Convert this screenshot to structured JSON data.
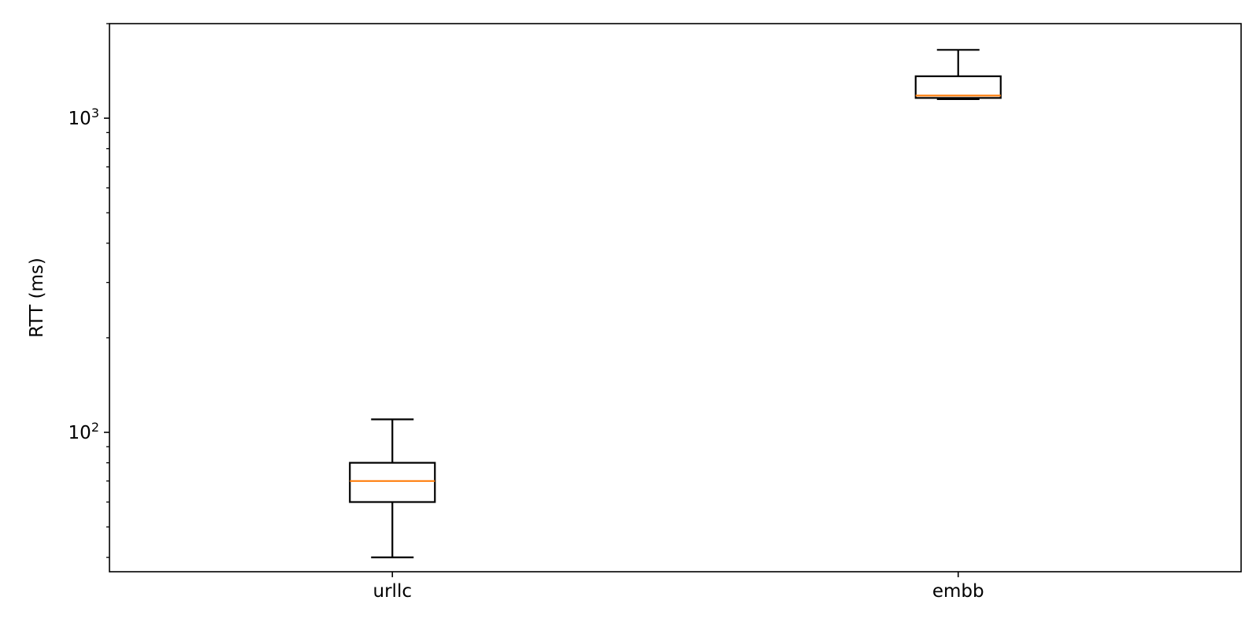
{
  "chart_data": {
    "type": "box",
    "title": "",
    "xlabel": "",
    "ylabel": "RTT (ms)",
    "yscale": "log",
    "ylim": [
      36,
      2000
    ],
    "categories": [
      "urllc",
      "embb"
    ],
    "y_major_ticks": [
      {
        "value": 100,
        "base": "10",
        "exp": "2"
      },
      {
        "value": 1000,
        "base": "10",
        "exp": "3"
      }
    ],
    "y_minor_ticks": [
      40,
      50,
      60,
      70,
      80,
      90,
      200,
      300,
      400,
      500,
      600,
      700,
      800,
      900,
      2000
    ],
    "grid": false,
    "legend": "none",
    "boxes": [
      {
        "name": "urllc",
        "whisker_low": 40,
        "q1": 60,
        "median": 70,
        "q3": 80,
        "whisker_high": 110
      },
      {
        "name": "embb",
        "whisker_low": 1150,
        "q1": 1160,
        "median": 1180,
        "q3": 1360,
        "whisker_high": 1650
      }
    ],
    "colors": {
      "box": "#000000",
      "median": "#ff7f0e",
      "axes": "#000000",
      "background": "#ffffff"
    }
  }
}
